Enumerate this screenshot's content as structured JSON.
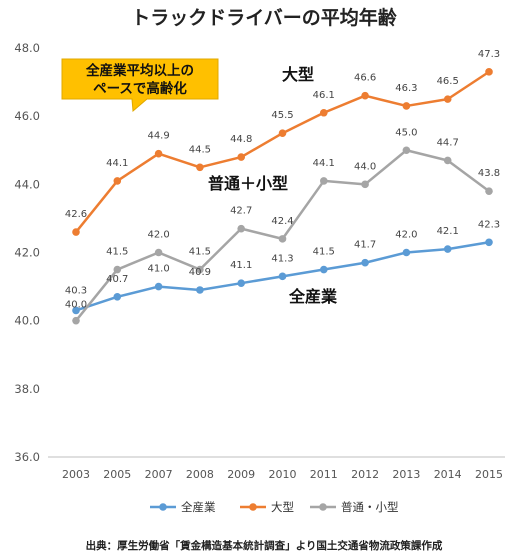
{
  "chart_data": {
    "type": "line",
    "title": "トラックドライバーの平均年齢",
    "categories": [
      "2003",
      "2005",
      "2007",
      "2008",
      "2009",
      "2010",
      "2011",
      "2012",
      "2013",
      "2014",
      "2015"
    ],
    "ylim": [
      36.0,
      48.0
    ],
    "yticks": [
      "36.0",
      "38.0",
      "40.0",
      "42.0",
      "44.0",
      "46.0",
      "48.0"
    ],
    "series": [
      {
        "name": "全産業",
        "color": "#5b9bd5",
        "values": [
          40.3,
          40.7,
          41.0,
          40.9,
          41.1,
          41.3,
          41.5,
          41.7,
          42.0,
          42.1,
          42.3
        ],
        "labels": [
          "40.3",
          "40.7",
          "41.0",
          "40.9",
          "41.1",
          "41.3",
          "41.5",
          "41.7",
          "42.0",
          "42.1",
          "42.3"
        ]
      },
      {
        "name": "大型",
        "color": "#ed7d31",
        "values": [
          42.6,
          44.1,
          44.9,
          44.5,
          44.8,
          45.5,
          46.1,
          46.6,
          46.3,
          46.5,
          47.3
        ],
        "labels": [
          "42.6",
          "44.1",
          "44.9",
          "44.5",
          "44.8",
          "45.5",
          "46.1",
          "46.6",
          "46.3",
          "46.5",
          "47.3"
        ]
      },
      {
        "name": "普通・小型",
        "color": "#a5a5a5",
        "values": [
          40.0,
          41.5,
          42.0,
          41.5,
          42.7,
          42.4,
          44.1,
          44.0,
          45.0,
          44.7,
          43.8
        ],
        "labels": [
          "40.0",
          "41.5",
          "42.0",
          "41.5",
          "42.7",
          "42.4",
          "44.1",
          "44.0",
          "45.0",
          "44.7",
          "43.8"
        ]
      }
    ],
    "series_labels": [
      "全産業",
      "大型",
      "普通＋小型"
    ],
    "callout": [
      "全産業平均以上の",
      "ペースで高齢化"
    ],
    "source": "出典：厚生労働省「賃金構造基本統計調査」より国土交通省物流政策課作成",
    "grid": false,
    "legend_position": "bottom"
  }
}
